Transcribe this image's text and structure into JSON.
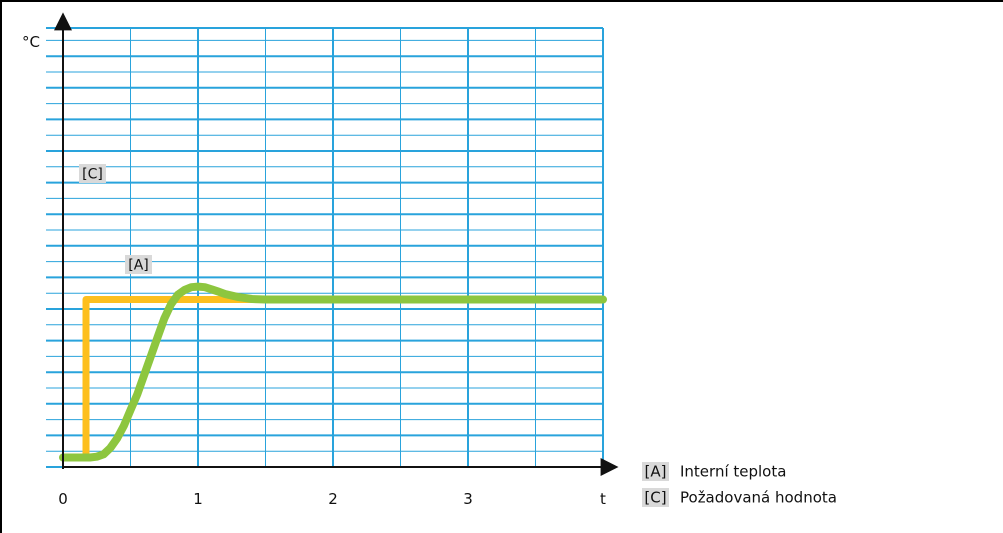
{
  "chart_data": {
    "type": "line",
    "y_unit": "°C",
    "x_axis_label": "t",
    "x_ticks": [
      "0",
      "1",
      "2",
      "3"
    ],
    "xlim": [
      0,
      4
    ],
    "grid": true,
    "legend_position": "bottom-right",
    "colors": {
      "grid": "#29a3dc",
      "axis": "#111111",
      "A": "#8dc63f",
      "C": "#fdbf1e",
      "tag_bg": "#d9d9d9"
    },
    "series": [
      {
        "key": "A",
        "tag": "[A]",
        "name": "Interní teplota",
        "x": [
          0,
          0.2,
          0.25,
          0.3,
          0.35,
          0.4,
          0.45,
          0.5,
          0.55,
          0.6,
          0.65,
          0.7,
          0.75,
          0.8,
          0.85,
          0.9,
          0.95,
          1.0,
          1.05,
          1.1,
          1.15,
          1.2,
          1.3,
          1.4,
          1.5,
          1.6,
          4.0
        ],
        "y": [
          0.6,
          0.6,
          0.65,
          0.8,
          1.2,
          1.8,
          2.6,
          3.6,
          4.6,
          5.8,
          7.0,
          8.2,
          9.4,
          10.3,
          10.9,
          11.2,
          11.38,
          11.42,
          11.38,
          11.25,
          11.1,
          10.95,
          10.75,
          10.63,
          10.6,
          10.6,
          10.6
        ]
      },
      {
        "key": "C",
        "tag": "[C]",
        "name": "Požadovaná hodnota",
        "x": [
          0.17,
          0.17,
          4.0
        ],
        "y": [
          0.6,
          10.6,
          10.6
        ]
      }
    ]
  }
}
